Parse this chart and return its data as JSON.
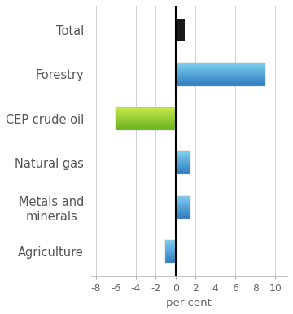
{
  "categories": [
    "Agriculture",
    "Metals and\nminerals",
    "Natural gas",
    "CEP crude oil",
    "Forestry",
    "Total"
  ],
  "values": [
    -1.0,
    1.5,
    1.5,
    -6.0,
    9.0,
    0.9
  ],
  "bar_colors": [
    "blue_grad",
    "blue_grad",
    "blue_grad",
    "green_grad",
    "blue_grad",
    "black"
  ],
  "xlabel": "per cent",
  "xlim": [
    -8.5,
    11.2
  ],
  "xticks": [
    -8,
    -6,
    -4,
    -2,
    0,
    2,
    4,
    6,
    8,
    10
  ],
  "xtick_labels": [
    "-8",
    "-6",
    "-4",
    "-2",
    "0",
    "2",
    "4",
    "6",
    "8",
    "10"
  ],
  "grid_color": "#d0d0d0",
  "background_color": "#ffffff",
  "tick_fontsize": 9,
  "label_fontsize": 10.5,
  "xlabel_fontsize": 9.5,
  "bar_height": 0.52,
  "blue_top": "#7ecff0",
  "blue_mid": "#3a9fd4",
  "blue_bot": "#2e7bbf",
  "green_top": "#c5e84a",
  "green_mid": "#8dc63f",
  "green_bot": "#6ab020",
  "black_color": "#1a1a1a"
}
